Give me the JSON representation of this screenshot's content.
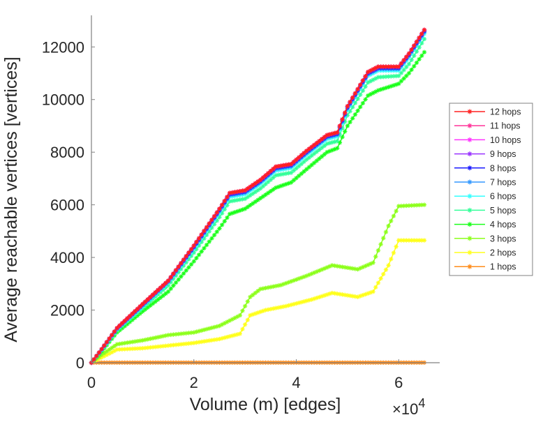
{
  "chart_data": {
    "type": "line",
    "title": "",
    "xlabel": "Volume (m) [edges]",
    "ylabel": "Average reachable vertices [vertices]",
    "x_multiplier_label": "×10",
    "x_multiplier_exponent": "4",
    "xlim": [
      0,
      6.8
    ],
    "ylim": [
      0,
      13200
    ],
    "xticks": [
      0,
      2,
      4,
      6
    ],
    "xtick_labels": [
      "0",
      "2",
      "4",
      "6"
    ],
    "yticks": [
      0,
      2000,
      4000,
      6000,
      8000,
      10000,
      12000
    ],
    "ytick_labels": [
      "0",
      "2000",
      "4000",
      "6000",
      "8000",
      "10000",
      "12000"
    ],
    "grid": false,
    "legend_position": "right",
    "marker": "asterisk",
    "series": [
      {
        "name": "12 hops",
        "color": "#ff2020",
        "x": [
          0,
          0.2,
          0.5,
          1,
          1.5,
          2,
          2.5,
          2.7,
          3,
          3.3,
          3.6,
          3.9,
          4.2,
          4.6,
          4.8,
          5,
          5.4,
          5.6,
          6,
          6.2,
          6.5
        ],
        "y": [
          0,
          520,
          1320,
          2230,
          3120,
          4450,
          5850,
          6450,
          6550,
          6950,
          7450,
          7550,
          8050,
          8650,
          8750,
          9750,
          11050,
          11250,
          11250,
          11750,
          12650
        ]
      },
      {
        "name": "11 hops",
        "color": "#ff3399",
        "x": [
          0,
          0.2,
          0.5,
          1,
          1.5,
          2,
          2.5,
          2.7,
          3,
          3.3,
          3.6,
          3.9,
          4.2,
          4.6,
          4.8,
          5,
          5.4,
          5.6,
          6,
          6.2,
          6.5
        ],
        "y": [
          0,
          520,
          1320,
          2230,
          3120,
          4450,
          5850,
          6450,
          6550,
          6950,
          7450,
          7550,
          8050,
          8650,
          8750,
          9750,
          11050,
          11250,
          11250,
          11750,
          12650
        ]
      },
      {
        "name": "10 hops",
        "color": "#ff33ff",
        "x": [
          0,
          0.2,
          0.5,
          1,
          1.5,
          2,
          2.5,
          2.7,
          3,
          3.3,
          3.6,
          3.9,
          4.2,
          4.6,
          4.8,
          5,
          5.4,
          5.6,
          6,
          6.2,
          6.5
        ],
        "y": [
          0,
          520,
          1320,
          2230,
          3120,
          4450,
          5850,
          6450,
          6550,
          6950,
          7450,
          7550,
          8050,
          8650,
          8750,
          9750,
          11050,
          11250,
          11250,
          11750,
          12650
        ]
      },
      {
        "name": "9 hops",
        "color": "#9933ff",
        "x": [
          0,
          0.2,
          0.5,
          1,
          1.5,
          2,
          2.5,
          2.7,
          3,
          3.3,
          3.6,
          3.9,
          4.2,
          4.6,
          4.8,
          5,
          5.4,
          5.6,
          6,
          6.2,
          6.5
        ],
        "y": [
          0,
          520,
          1310,
          2220,
          3110,
          4440,
          5840,
          6440,
          6540,
          6940,
          7440,
          7540,
          8040,
          8640,
          8740,
          9740,
          11040,
          11240,
          11240,
          11740,
          12640
        ]
      },
      {
        "name": "8 hops",
        "color": "#1a1aff",
        "x": [
          0,
          0.2,
          0.5,
          1,
          1.5,
          2,
          2.5,
          2.7,
          3,
          3.3,
          3.6,
          3.9,
          4.2,
          4.6,
          4.8,
          5,
          5.4,
          5.6,
          6,
          6.2,
          6.5
        ],
        "y": [
          0,
          510,
          1300,
          2200,
          3100,
          4400,
          5800,
          6400,
          6500,
          6900,
          7400,
          7500,
          8000,
          8600,
          8700,
          9700,
          11000,
          11200,
          11200,
          11700,
          12600
        ]
      },
      {
        "name": "7 hops",
        "color": "#3399ff",
        "x": [
          0,
          0.2,
          0.5,
          1,
          1.5,
          2,
          2.5,
          2.7,
          3,
          3.3,
          3.6,
          3.9,
          4.2,
          4.6,
          4.8,
          5,
          5.4,
          5.6,
          6,
          6.2,
          6.5
        ],
        "y": [
          0,
          500,
          1290,
          2180,
          3080,
          4370,
          5760,
          6360,
          6460,
          6860,
          7360,
          7460,
          7960,
          8560,
          8660,
          9660,
          10960,
          11160,
          11160,
          11660,
          12560
        ]
      },
      {
        "name": "6 hops",
        "color": "#33ffff",
        "x": [
          0,
          0.2,
          0.5,
          1,
          1.5,
          2,
          2.5,
          2.7,
          3,
          3.3,
          3.6,
          3.9,
          4.2,
          4.6,
          4.8,
          5,
          5.4,
          5.6,
          6,
          6.2,
          6.5
        ],
        "y": [
          0,
          490,
          1270,
          2150,
          3040,
          4320,
          5700,
          6300,
          6400,
          6800,
          7300,
          7400,
          7900,
          8500,
          8600,
          9600,
          10900,
          11100,
          11100,
          11600,
          12500
        ]
      },
      {
        "name": "5 hops",
        "color": "#33ff99",
        "x": [
          0,
          0.2,
          0.5,
          1,
          1.5,
          2,
          2.5,
          2.7,
          3,
          3.3,
          3.6,
          3.9,
          4.2,
          4.6,
          4.8,
          5,
          5.4,
          5.6,
          6,
          6.2,
          6.5
        ],
        "y": [
          0,
          470,
          1230,
          2080,
          2940,
          4180,
          5530,
          6130,
          6230,
          6620,
          7120,
          7220,
          7720,
          8320,
          8420,
          9400,
          10650,
          10850,
          10900,
          11350,
          12300
        ]
      },
      {
        "name": "4 hops",
        "color": "#1aff1a",
        "x": [
          0,
          0.2,
          0.5,
          1,
          1.5,
          2,
          2.5,
          2.7,
          3,
          3.3,
          3.6,
          3.9,
          4.2,
          4.6,
          4.8,
          5,
          5.4,
          5.6,
          6,
          6.2,
          6.5
        ],
        "y": [
          0,
          430,
          1150,
          1950,
          2700,
          3850,
          5100,
          5650,
          5850,
          6250,
          6650,
          6850,
          7350,
          8000,
          8150,
          9000,
          10150,
          10350,
          10600,
          11000,
          11800
        ]
      },
      {
        "name": "3 hops",
        "color": "#8cff1a",
        "x": [
          0,
          0.2,
          0.5,
          1,
          1.5,
          2,
          2.5,
          2.9,
          3.1,
          3.3,
          3.7,
          4.2,
          4.7,
          5.2,
          5.5,
          5.8,
          6,
          6.5
        ],
        "y": [
          0,
          300,
          700,
          850,
          1050,
          1150,
          1400,
          1800,
          2500,
          2800,
          2950,
          3300,
          3700,
          3550,
          3800,
          5200,
          5950,
          6000
        ]
      },
      {
        "name": "2 hops",
        "color": "#ffff1a",
        "x": [
          0,
          0.2,
          0.5,
          1,
          1.5,
          2,
          2.5,
          2.9,
          3.1,
          3.4,
          3.8,
          4.3,
          4.7,
          5.2,
          5.5,
          5.8,
          6,
          6.5
        ],
        "y": [
          0,
          200,
          500,
          550,
          650,
          750,
          900,
          1100,
          1800,
          2000,
          2150,
          2400,
          2650,
          2500,
          2700,
          3700,
          4650,
          4650
        ]
      },
      {
        "name": "1 hops",
        "color": "#ff8c1a",
        "x": [
          0,
          6.5
        ],
        "y": [
          5,
          5
        ]
      }
    ]
  }
}
